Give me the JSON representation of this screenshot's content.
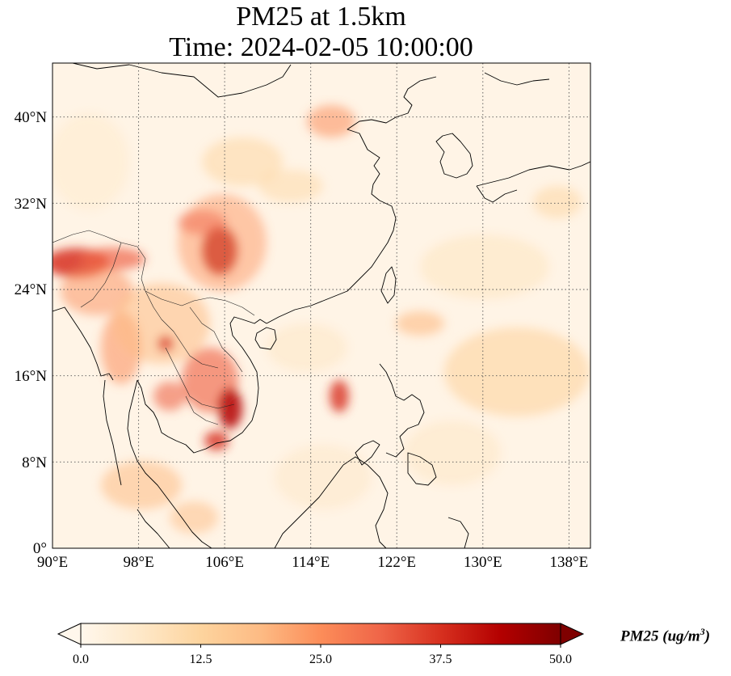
{
  "title": {
    "line1": "PM25 at 1.5km",
    "line2": "Time: 2024-02-05 10:00:00"
  },
  "map": {
    "projection": "PlateCarree",
    "lon_range": [
      90,
      140
    ],
    "lat_range": [
      0,
      45
    ],
    "gridlines": "dotted",
    "lon_ticks": [
      "90°E",
      "98°E",
      "106°E",
      "114°E",
      "122°E",
      "130°E",
      "138°E"
    ],
    "lat_ticks": [
      "0°",
      "8°N",
      "16°N",
      "24°N",
      "32°N",
      "40°N"
    ],
    "colormap": "OrRd",
    "colormap_colors": [
      "#fff7ec",
      "#fee8c8",
      "#fdd49e",
      "#fdbb84",
      "#fc8d59",
      "#ef6548",
      "#d7301f",
      "#b30000",
      "#7f0000"
    ]
  },
  "colorbar": {
    "label": "PM25 (ug/m",
    "label_sup": "3",
    "label_close": ")",
    "ticks": [
      "0.0",
      "12.5",
      "25.0",
      "37.5",
      "50.0"
    ],
    "extend": "both"
  }
}
